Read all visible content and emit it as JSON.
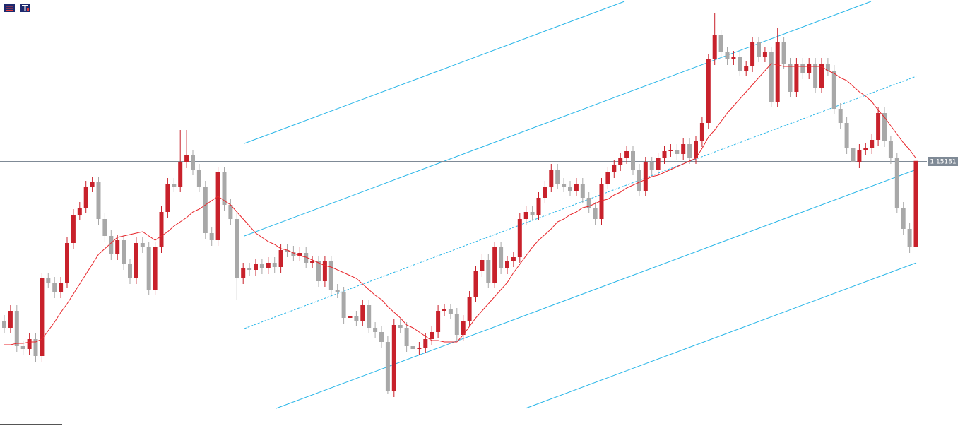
{
  "chart_data": {
    "type": "candlestick",
    "current_price": 1.15181,
    "ylim": [
      1.13305,
      1.1632
    ],
    "up_color": "#c8212b",
    "down_color": "#a8a8a8",
    "ma_color": "#e8262b",
    "price_line_color": "#7f8a96",
    "candles": [
      [
        1.1405,
        1.1409,
        1.1396,
        1.14
      ],
      [
        1.14,
        1.1416,
        1.1396,
        1.1412
      ],
      [
        1.1412,
        1.1416,
        1.1383,
        1.1387
      ],
      [
        1.1387,
        1.1391,
        1.1381,
        1.1385
      ],
      [
        1.1385,
        1.1396,
        1.1381,
        1.1392
      ],
      [
        1.1392,
        1.1396,
        1.1376,
        1.138
      ],
      [
        1.138,
        1.1439,
        1.1376,
        1.1435
      ],
      [
        1.1435,
        1.1439,
        1.1428,
        1.1432
      ],
      [
        1.1432,
        1.1436,
        1.1421,
        1.1425
      ],
      [
        1.1425,
        1.1436,
        1.1421,
        1.1432
      ],
      [
        1.1432,
        1.1464,
        1.1428,
        1.146
      ],
      [
        1.146,
        1.1484,
        1.1456,
        1.148
      ],
      [
        1.148,
        1.1489,
        1.1476,
        1.1485
      ],
      [
        1.1485,
        1.1504,
        1.1481,
        1.15
      ],
      [
        1.15,
        1.1507,
        1.1496,
        1.1503
      ],
      [
        1.1503,
        1.1507,
        1.1473,
        1.1477
      ],
      [
        1.1477,
        1.1481,
        1.1461,
        1.1465
      ],
      [
        1.1465,
        1.1469,
        1.1448,
        1.1452
      ],
      [
        1.1452,
        1.1466,
        1.1448,
        1.1462
      ],
      [
        1.1462,
        1.1466,
        1.1441,
        1.1445
      ],
      [
        1.1445,
        1.1449,
        1.1431,
        1.1435
      ],
      [
        1.1435,
        1.1464,
        1.1431,
        1.146
      ],
      [
        1.146,
        1.1464,
        1.1453,
        1.1457
      ],
      [
        1.1457,
        1.1461,
        1.1423,
        1.1427
      ],
      [
        1.1427,
        1.1461,
        1.1423,
        1.1457
      ],
      [
        1.1457,
        1.1486,
        1.1453,
        1.1482
      ],
      [
        1.1482,
        1.1506,
        1.1478,
        1.1502
      ],
      [
        1.1502,
        1.1506,
        1.1496,
        1.15
      ],
      [
        1.15,
        1.154,
        1.1496,
        1.1517
      ],
      [
        1.1517,
        1.154,
        1.1513,
        1.1522
      ],
      [
        1.1522,
        1.1526,
        1.1508,
        1.1512
      ],
      [
        1.1512,
        1.1516,
        1.1496,
        1.15
      ],
      [
        1.15,
        1.1504,
        1.1463,
        1.1467
      ],
      [
        1.1467,
        1.1471,
        1.1458,
        1.1462
      ],
      [
        1.1462,
        1.1514,
        1.1458,
        1.151
      ],
      [
        1.151,
        1.1514,
        1.1483,
        1.1487
      ],
      [
        1.1487,
        1.1491,
        1.1473,
        1.1477
      ],
      [
        1.1477,
        1.1481,
        1.142,
        1.1435
      ],
      [
        1.1435,
        1.1446,
        1.1431,
        1.1442
      ],
      [
        1.1442,
        1.1446,
        1.1437,
        1.1441
      ],
      [
        1.1441,
        1.1449,
        1.1437,
        1.1445
      ],
      [
        1.1445,
        1.1449,
        1.1438,
        1.1442
      ],
      [
        1.1442,
        1.145,
        1.1438,
        1.1446
      ],
      [
        1.1446,
        1.145,
        1.1439,
        1.1443
      ],
      [
        1.1443,
        1.1459,
        1.1439,
        1.1455
      ],
      [
        1.1455,
        1.1459,
        1.145,
        1.1454
      ],
      [
        1.1454,
        1.1458,
        1.1447,
        1.1451
      ],
      [
        1.1451,
        1.1457,
        1.1447,
        1.1453
      ],
      [
        1.1453,
        1.1457,
        1.1442,
        1.1446
      ],
      [
        1.1446,
        1.1451,
        1.1442,
        1.1447
      ],
      [
        1.1447,
        1.1451,
        1.1429,
        1.1433
      ],
      [
        1.1433,
        1.1451,
        1.1429,
        1.1447
      ],
      [
        1.1447,
        1.1451,
        1.1423,
        1.1427
      ],
      [
        1.1427,
        1.1431,
        1.1421,
        1.1425
      ],
      [
        1.1425,
        1.1429,
        1.1403,
        1.1407
      ],
      [
        1.1407,
        1.1412,
        1.1403,
        1.1408
      ],
      [
        1.1408,
        1.1412,
        1.1401,
        1.1405
      ],
      [
        1.1405,
        1.142,
        1.1401,
        1.1416
      ],
      [
        1.1416,
        1.142,
        1.1396,
        1.14
      ],
      [
        1.14,
        1.1404,
        1.1393,
        1.1397
      ],
      [
        1.1397,
        1.1401,
        1.1386,
        1.139
      ],
      [
        1.139,
        1.1394,
        1.1353,
        1.1355
      ],
      [
        1.1355,
        1.1406,
        1.1351,
        1.1402
      ],
      [
        1.1402,
        1.1406,
        1.1396,
        1.14
      ],
      [
        1.14,
        1.1404,
        1.1383,
        1.1387
      ],
      [
        1.1387,
        1.1391,
        1.1381,
        1.1385
      ],
      [
        1.1385,
        1.139,
        1.1381,
        1.1386
      ],
      [
        1.1386,
        1.1396,
        1.1382,
        1.1392
      ],
      [
        1.1392,
        1.1401,
        1.1388,
        1.1397
      ],
      [
        1.1397,
        1.1416,
        1.1393,
        1.1412
      ],
      [
        1.1412,
        1.1417,
        1.1408,
        1.1413
      ],
      [
        1.1413,
        1.1417,
        1.1406,
        1.141
      ],
      [
        1.141,
        1.1414,
        1.1391,
        1.1395
      ],
      [
        1.1395,
        1.1409,
        1.1391,
        1.1405
      ],
      [
        1.1405,
        1.1426,
        1.1401,
        1.1422
      ],
      [
        1.1422,
        1.1444,
        1.1418,
        1.144
      ],
      [
        1.144,
        1.1452,
        1.1436,
        1.1448
      ],
      [
        1.1448,
        1.1452,
        1.1428,
        1.1432
      ],
      [
        1.1432,
        1.1461,
        1.1428,
        1.1457
      ],
      [
        1.1457,
        1.1461,
        1.1438,
        1.1442
      ],
      [
        1.1442,
        1.1451,
        1.1438,
        1.1447
      ],
      [
        1.1447,
        1.1454,
        1.1443,
        1.145
      ],
      [
        1.145,
        1.1481,
        1.1446,
        1.1477
      ],
      [
        1.1477,
        1.1486,
        1.1473,
        1.1482
      ],
      [
        1.1482,
        1.1486,
        1.1476,
        1.148
      ],
      [
        1.148,
        1.1496,
        1.1476,
        1.1492
      ],
      [
        1.1492,
        1.1504,
        1.1488,
        1.15
      ],
      [
        1.15,
        1.1516,
        1.1496,
        1.1512
      ],
      [
        1.1512,
        1.1516,
        1.1498,
        1.1502
      ],
      [
        1.1502,
        1.1506,
        1.1496,
        1.15
      ],
      [
        1.15,
        1.1504,
        1.1493,
        1.1497
      ],
      [
        1.1497,
        1.1506,
        1.1493,
        1.1502
      ],
      [
        1.1502,
        1.1506,
        1.1488,
        1.1492
      ],
      [
        1.1492,
        1.1496,
        1.1481,
        1.1485
      ],
      [
        1.1485,
        1.1489,
        1.1473,
        1.1477
      ],
      [
        1.1477,
        1.1506,
        1.1473,
        1.1502
      ],
      [
        1.1502,
        1.1514,
        1.1498,
        1.151
      ],
      [
        1.151,
        1.1519,
        1.1506,
        1.1515
      ],
      [
        1.1515,
        1.1524,
        1.1511,
        1.152
      ],
      [
        1.152,
        1.1529,
        1.1516,
        1.1525
      ],
      [
        1.1525,
        1.1529,
        1.1508,
        1.1512
      ],
      [
        1.1512,
        1.1516,
        1.1493,
        1.1497
      ],
      [
        1.1497,
        1.1521,
        1.1493,
        1.1517
      ],
      [
        1.1517,
        1.1521,
        1.1508,
        1.1512
      ],
      [
        1.1512,
        1.1524,
        1.1508,
        1.152
      ],
      [
        1.152,
        1.1529,
        1.1516,
        1.1525
      ],
      [
        1.1525,
        1.153,
        1.1521,
        1.1526
      ],
      [
        1.1526,
        1.153,
        1.1519,
        1.1523
      ],
      [
        1.1523,
        1.1534,
        1.1519,
        1.153
      ],
      [
        1.153,
        1.1534,
        1.1516,
        1.152
      ],
      [
        1.152,
        1.1536,
        1.1516,
        1.1532
      ],
      [
        1.1532,
        1.1549,
        1.1528,
        1.1545
      ],
      [
        1.1545,
        1.1594,
        1.1541,
        1.159
      ],
      [
        1.159,
        1.1623,
        1.1586,
        1.1607
      ],
      [
        1.1607,
        1.1611,
        1.1591,
        1.1595
      ],
      [
        1.1595,
        1.1599,
        1.1586,
        1.159
      ],
      [
        1.159,
        1.1596,
        1.1586,
        1.1592
      ],
      [
        1.1592,
        1.1596,
        1.1578,
        1.1582
      ],
      [
        1.1582,
        1.1589,
        1.1578,
        1.1585
      ],
      [
        1.1585,
        1.1606,
        1.1581,
        1.1602
      ],
      [
        1.1602,
        1.1606,
        1.1588,
        1.1592
      ],
      [
        1.1592,
        1.1599,
        1.1588,
        1.1595
      ],
      [
        1.1595,
        1.1599,
        1.1556,
        1.156
      ],
      [
        1.156,
        1.1612,
        1.1556,
        1.1602
      ],
      [
        1.1602,
        1.1606,
        1.1583,
        1.1587
      ],
      [
        1.1587,
        1.1591,
        1.1563,
        1.1567
      ],
      [
        1.1567,
        1.1591,
        1.1563,
        1.1587
      ],
      [
        1.1587,
        1.1591,
        1.1576,
        1.158
      ],
      [
        1.158,
        1.1591,
        1.1576,
        1.1587
      ],
      [
        1.1587,
        1.1591,
        1.1566,
        1.157
      ],
      [
        1.157,
        1.1591,
        1.1566,
        1.1587
      ],
      [
        1.1587,
        1.1591,
        1.1578,
        1.1582
      ],
      [
        1.1582,
        1.1586,
        1.1551,
        1.1555
      ],
      [
        1.1555,
        1.1559,
        1.1541,
        1.1545
      ],
      [
        1.1545,
        1.1549,
        1.1523,
        1.1527
      ],
      [
        1.1527,
        1.1531,
        1.1513,
        1.1517
      ],
      [
        1.1517,
        1.153,
        1.1513,
        1.1526
      ],
      [
        1.1526,
        1.1531,
        1.1522,
        1.1527
      ],
      [
        1.1527,
        1.1537,
        1.1523,
        1.1533
      ],
      [
        1.1533,
        1.1556,
        1.1529,
        1.1552
      ],
      [
        1.1552,
        1.1556,
        1.1528,
        1.1532
      ],
      [
        1.1532,
        1.1536,
        1.1516,
        1.152
      ],
      [
        1.152,
        1.1524,
        1.1481,
        1.1485
      ],
      [
        1.1485,
        1.1489,
        1.1466,
        1.147
      ],
      [
        1.147,
        1.1474,
        1.1453,
        1.1457
      ],
      [
        1.1457,
        1.1519,
        1.143,
        1.15181
      ]
    ],
    "ma": [
      1.1388,
      1.1388,
      1.1389,
      1.1389,
      1.139,
      1.139,
      1.1392,
      1.1398,
      1.1404,
      1.1411,
      1.1417,
      1.1424,
      1.1431,
      1.1438,
      1.1445,
      1.1452,
      1.1456,
      1.146,
      1.1464,
      1.1465,
      1.1466,
      1.1467,
      1.1468,
      1.1465,
      1.1462,
      1.1465,
      1.1468,
      1.1472,
      1.1475,
      1.1478,
      1.1482,
      1.1484,
      1.1487,
      1.149,
      1.1493,
      1.149,
      1.1487,
      1.1482,
      1.1477,
      1.1472,
      1.1467,
      1.1464,
      1.1461,
      1.1459,
      1.1456,
      1.1455,
      1.1453,
      1.1451,
      1.145,
      1.1448,
      1.1446,
      1.1444,
      1.1443,
      1.1441,
      1.1439,
      1.1437,
      1.1435,
      1.1431,
      1.1427,
      1.1423,
      1.142,
      1.1415,
      1.1411,
      1.1407,
      1.1402,
      1.14,
      1.1397,
      1.1394,
      1.1391,
      1.1391,
      1.139,
      1.139,
      1.139,
      1.1395,
      1.1401,
      1.1407,
      1.1412,
      1.1417,
      1.1422,
      1.1427,
      1.1432,
      1.1439,
      1.1445,
      1.1451,
      1.1457,
      1.1462,
      1.1466,
      1.147,
      1.1475,
      1.1477,
      1.148,
      1.1482,
      1.1485,
      1.1486,
      1.1488,
      1.149,
      1.1491,
      1.1494,
      1.1496,
      1.1499,
      1.1501,
      1.1503,
      1.1505,
      1.1507,
      1.1508,
      1.151,
      1.1512,
      1.1514,
      1.1516,
      1.1518,
      1.152,
      1.1527,
      1.1535,
      1.154,
      1.1546,
      1.1552,
      1.1557,
      1.1562,
      1.1567,
      1.1572,
      1.1577,
      1.1582,
      1.1587,
      1.1586,
      1.1585,
      1.1585,
      1.1585,
      1.1585,
      1.1585,
      1.1585,
      1.1585,
      1.1582,
      1.158,
      1.1577,
      1.1575,
      1.1571,
      1.1567,
      1.1564,
      1.156,
      1.1554,
      1.1549,
      1.1543,
      1.1537,
      1.1531,
      1.1526,
      1.152
    ]
  }
}
